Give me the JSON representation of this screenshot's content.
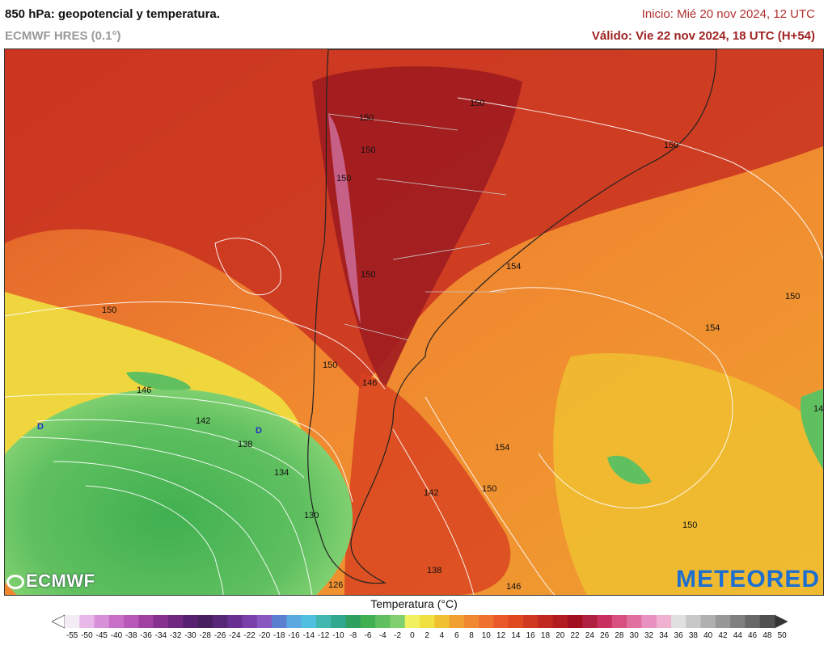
{
  "header": {
    "title": "850 hPa: geopotencial y temperatura.",
    "model": "ECMWF HRES (0.1°)",
    "init": "Inicio: Mié 20 nov 2024, 12 UTC",
    "valid": "Válido: Vie 22 nov 2024, 18 UTC (H+54)"
  },
  "map": {
    "contour_labels": [
      "150",
      "150",
      "150",
      "150",
      "150",
      "150",
      "150",
      "150",
      "150",
      "150",
      "150",
      "154",
      "154",
      "154",
      "146",
      "146",
      "146",
      "142",
      "142",
      "138",
      "138",
      "134",
      "130",
      "126"
    ],
    "low_markers": [
      "D",
      "D"
    ]
  },
  "logos": {
    "left": "ECMWF",
    "right": "METEORED"
  },
  "colorbar": {
    "title": "Temperatura (°C)",
    "ticks": [
      "-55",
      "-50",
      "-45",
      "-40",
      "-38",
      "-36",
      "-34",
      "-32",
      "-30",
      "-28",
      "-26",
      "-24",
      "-22",
      "-20",
      "-18",
      "-16",
      "-14",
      "-12",
      "-10",
      "-8",
      "-6",
      "-4",
      "-2",
      "0",
      "2",
      "4",
      "6",
      "8",
      "10",
      "12",
      "14",
      "16",
      "18",
      "20",
      "22",
      "24",
      "26",
      "28",
      "30",
      "32",
      "34",
      "36",
      "38",
      "40",
      "42",
      "44",
      "46",
      "48",
      "50"
    ],
    "colors": [
      "#f4ecf4",
      "#e8b8e8",
      "#d890d8",
      "#c870c8",
      "#b858b8",
      "#a040a0",
      "#883090",
      "#702880",
      "#582070",
      "#482060",
      "#582878",
      "#683090",
      "#7840a8",
      "#8858c0",
      "#5c80d0",
      "#5ca8e0",
      "#50c0e0",
      "#40b8b0",
      "#30a890",
      "#30a060",
      "#40b050",
      "#60c060",
      "#80d070",
      "#f0f060",
      "#f0e040",
      "#f0c030",
      "#f0a030",
      "#f08830",
      "#f07030",
      "#e85828",
      "#e04820",
      "#d03820",
      "#c02820",
      "#b01c20",
      "#a01020",
      "#b02040",
      "#c83060",
      "#d85080",
      "#e070a0",
      "#e890c0",
      "#f0b0d0",
      "#e0e0e0",
      "#c8c8c8",
      "#b0b0b0",
      "#989898",
      "#808080",
      "#686868",
      "#505050"
    ]
  }
}
